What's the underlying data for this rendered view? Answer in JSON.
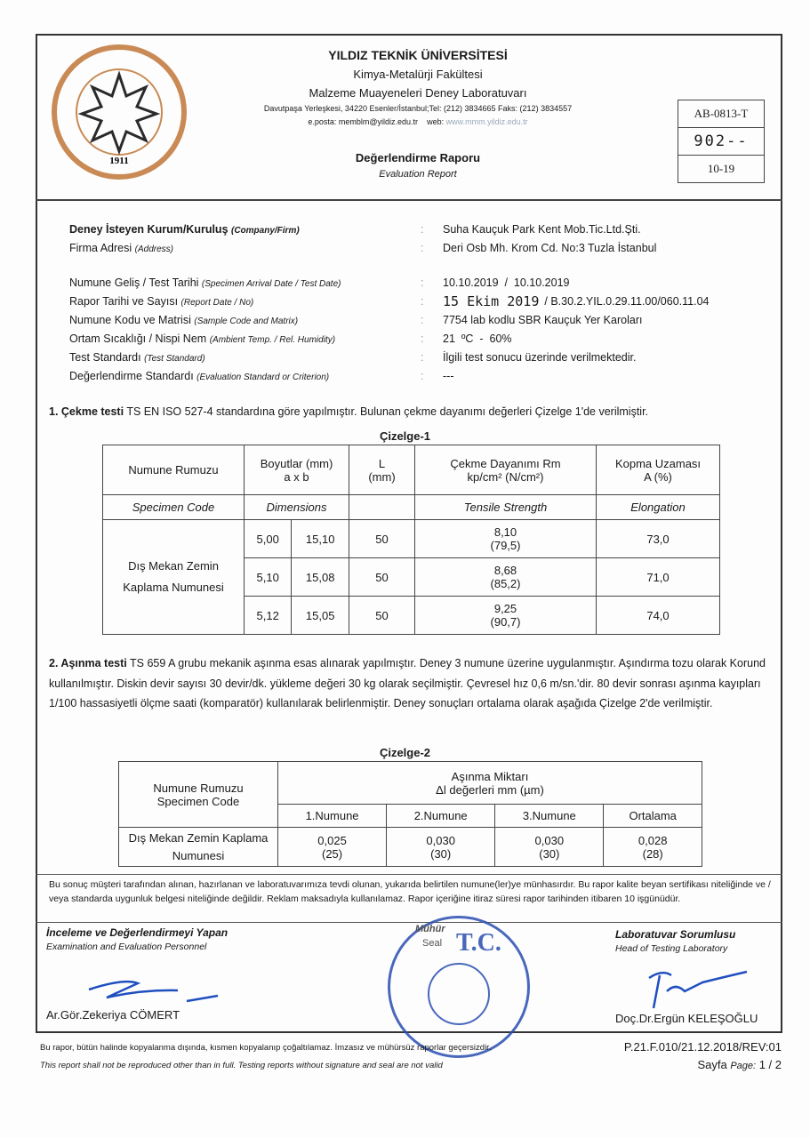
{
  "header": {
    "logo_text": "YILDIZ TEKNİK ÜNİVERSİTESİ 1911",
    "university": "YILDIZ TEKNİK ÜNİVERSİTESİ",
    "faculty": "Kimya-Metalürji Fakültesi",
    "laboratory": "Malzeme Muayeneleri Deney Laboratuvarı",
    "address": "Davutpaşa Yerleşkesi, 34220 Esenler/İstanbul;Tel: (212) 3834665 Faks: (212) 3834557",
    "email": "e.posta: memblm@yildiz.edu.tr",
    "web_label": "web:",
    "web": "www.mmm.yildiz.edu.tr",
    "report_title": "Değerlendirme Raporu",
    "report_title_en": "Evaluation Report",
    "codes": [
      "AB-0813-T",
      "902--",
      "10-19"
    ]
  },
  "client": [
    {
      "label": "Deney İsteyen Kurum/Kuruluş",
      "label_en": "(Company/Firm)",
      "value": "Suha Kauçuk Park Kent Mob.Tic.Ltd.Şti."
    },
    {
      "label": "Firma Adresi",
      "label_en": "(Address)",
      "value": "Deri Osb Mh. Krom Cd. No:3 Tuzla İstanbul"
    }
  ],
  "details": [
    {
      "label": "Numune Geliş / Test Tarihi",
      "label_en": "(Specimen Arrival Date / Test Date)",
      "value": "10.10.2019  /  10.10.2019"
    },
    {
      "label": "Rapor Tarihi ve Sayısı",
      "label_en": "(Report Date / No)",
      "stamp": "15 Ekim 2019",
      "value": "/ B.30.2.YIL.0.29.11.00/060.11.04"
    },
    {
      "label": "Numune Kodu ve Matrisi",
      "label_en": "(Sample Code and Matrix)",
      "value": "7754 lab kodlu SBR Kauçuk Yer Karoları"
    },
    {
      "label": "Ortam Sıcaklığı / Nispi Nem",
      "label_en": "(Ambient Temp. / Rel. Humidity)",
      "value": "21  ºC  -  60%"
    },
    {
      "label": "Test Standardı",
      "label_en": "(Test Standard)",
      "value": "İlgili test sonucu üzerinde verilmektedir."
    },
    {
      "label": "Değerlendirme Standardı",
      "label_en": "(Evaluation Standard or Criterion)",
      "value": "---"
    }
  ],
  "section1": {
    "num": "1. Çekme testi",
    "text": " TS EN ISO 527-4 standardına göre yapılmıştır. Bulunan çekme dayanımı değerleri Çizelge 1'de verilmiştir."
  },
  "table1": {
    "caption": "Çizelge-1",
    "headers": [
      "Numune Rumuzu",
      "Boyutlar (mm)\na x b",
      "L\n(mm)",
      "Çekme Dayanımı Rm\nkp/cm² (N/cm²)",
      "Kopma Uzaması\nA (%)"
    ],
    "headers_en": [
      "Specimen Code",
      "Dimensions",
      "",
      "Tensile Strength",
      "Elongation"
    ],
    "specimen": "Dış Mekan Zemin Kaplama Numunesi",
    "rows": [
      {
        "a": "5,00",
        "b": "15,10",
        "L": "50",
        "rm": "8,10",
        "rm_n": "(79,5)",
        "A": "73,0"
      },
      {
        "a": "5,10",
        "b": "15,08",
        "L": "50",
        "rm": "8,68",
        "rm_n": "(85,2)",
        "A": "71,0"
      },
      {
        "a": "5,12",
        "b": "15,05",
        "L": "50",
        "rm": "9,25",
        "rm_n": "(90,7)",
        "A": "74,0"
      }
    ]
  },
  "section2": {
    "num": "2. Aşınma testi",
    "text": " TS 659 A grubu mekanik aşınma esas alınarak yapılmıştır. Deney 3 numune üzerine uygulanmıştır. Aşındırma tozu olarak Korund kullanılmıştır. Diskin devir sayısı 30 devir/dk. yükleme değeri 30 kg olarak seçilmiştir. Çevresel hız 0,6 m/sn.'dir. 80 devir sonrası aşınma kayıpları 1/100 hassasiyetli ölçme saati (komparatör) kullanılarak belirlenmiştir. Deney sonuçları ortalama olarak aşağıda Çizelge 2'de verilmiştir."
  },
  "table2": {
    "caption": "Çizelge-2",
    "specimen_header": "Numune Rumuzu",
    "specimen_header_en": "Specimen Code",
    "group_header": "Aşınma Miktarı",
    "group_sub": "Δl değerleri mm (µm)",
    "columns": [
      "1.Numune",
      "2.Numune",
      "3.Numune",
      "Ortalama"
    ],
    "specimen": "Dış Mekan Zemin Kaplama Numunesi",
    "values": [
      {
        "mm": "0,025",
        "um": "(25)"
      },
      {
        "mm": "0,030",
        "um": "(30)"
      },
      {
        "mm": "0,030",
        "um": "(30)"
      },
      {
        "mm": "0,028",
        "um": "(28)"
      }
    ]
  },
  "notice": "Bu sonuç müşteri tarafından alınan, hazırlanan ve laboratuvarımıza tevdi olunan, yukarıda belirtilen numune(ler)ye münhasırdır. Bu rapor kalite beyan sertifikası niteliğinde ve / veya standarda uygunluk belgesi niteliğinde değildir. Reklam maksadıyla kullanılamaz. Rapor içeriğine itiraz süresi rapor tarihinden itibaren 10 işgünüdür.",
  "signatures": {
    "left_title": "İnceleme ve Değerlendirmeyi Yapan",
    "left_title_en": "Examination and Evaluation Personnel",
    "left_name": "Ar.Gör.Zekeriya CÖMERT",
    "seal_title": "Mühür",
    "seal_title_en": "Seal",
    "seal_text": "T.C.",
    "right_title": "Laboratuvar Sorumlusu",
    "right_title_en": "Head of Testing Laboratory",
    "right_name": "Doç.Dr.Ergün KELEŞOĞLU"
  },
  "footer": {
    "tr": "Bu rapor, bütün halinde kopyalanma dışında, kısmen kopyalanıp çoğaltılamaz. İmzasız ve mühürsüz raporlar geçersizdir.",
    "en": "This report shall not be reproduced other than in full. Testing reports without signature and seal are not valid",
    "form_code": "P.21.F.010/21.12.2018/REV:01",
    "page_label": "Sayfa",
    "page_label_en": "Page:",
    "page": "1 / 2"
  },
  "colors": {
    "logo": "#c98a55",
    "seal": "#2a4fb0",
    "signature": "#1f4fbf"
  }
}
